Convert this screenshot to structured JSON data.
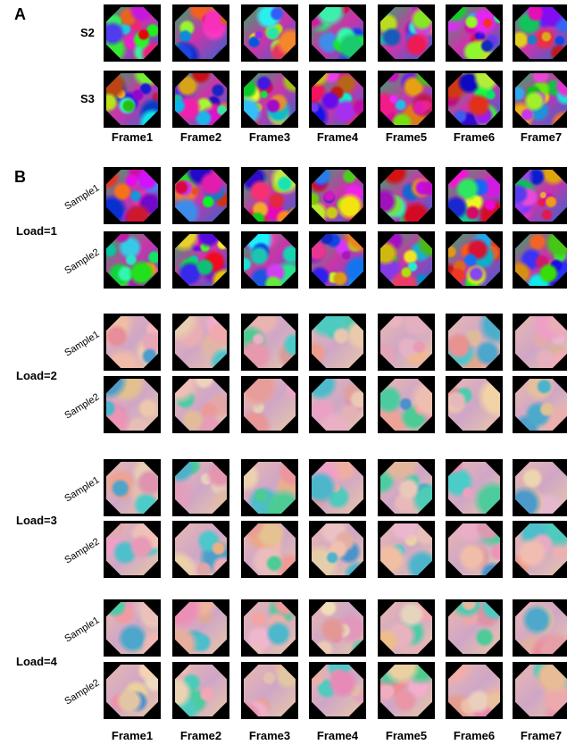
{
  "panel_a": {
    "label": "A",
    "rows": [
      "S2",
      "S3"
    ],
    "frames": [
      "Frame1",
      "Frame2",
      "Frame3",
      "Frame4",
      "Frame5",
      "Frame6",
      "Frame7"
    ]
  },
  "panel_b": {
    "label": "B",
    "groups": [
      {
        "label": "Load=1",
        "samples": [
          "Sample1",
          "Sample2"
        ]
      },
      {
        "label": "Load=2",
        "samples": [
          "Sample1",
          "Sample2"
        ]
      },
      {
        "label": "Load=3",
        "samples": [
          "Sample1",
          "Sample2"
        ]
      },
      {
        "label": "Load=4",
        "samples": [
          "Sample1",
          "Sample2"
        ]
      }
    ],
    "frames": [
      "Frame1",
      "Frame2",
      "Frame3",
      "Frame4",
      "Frame5",
      "Frame6",
      "Frame7"
    ]
  }
}
